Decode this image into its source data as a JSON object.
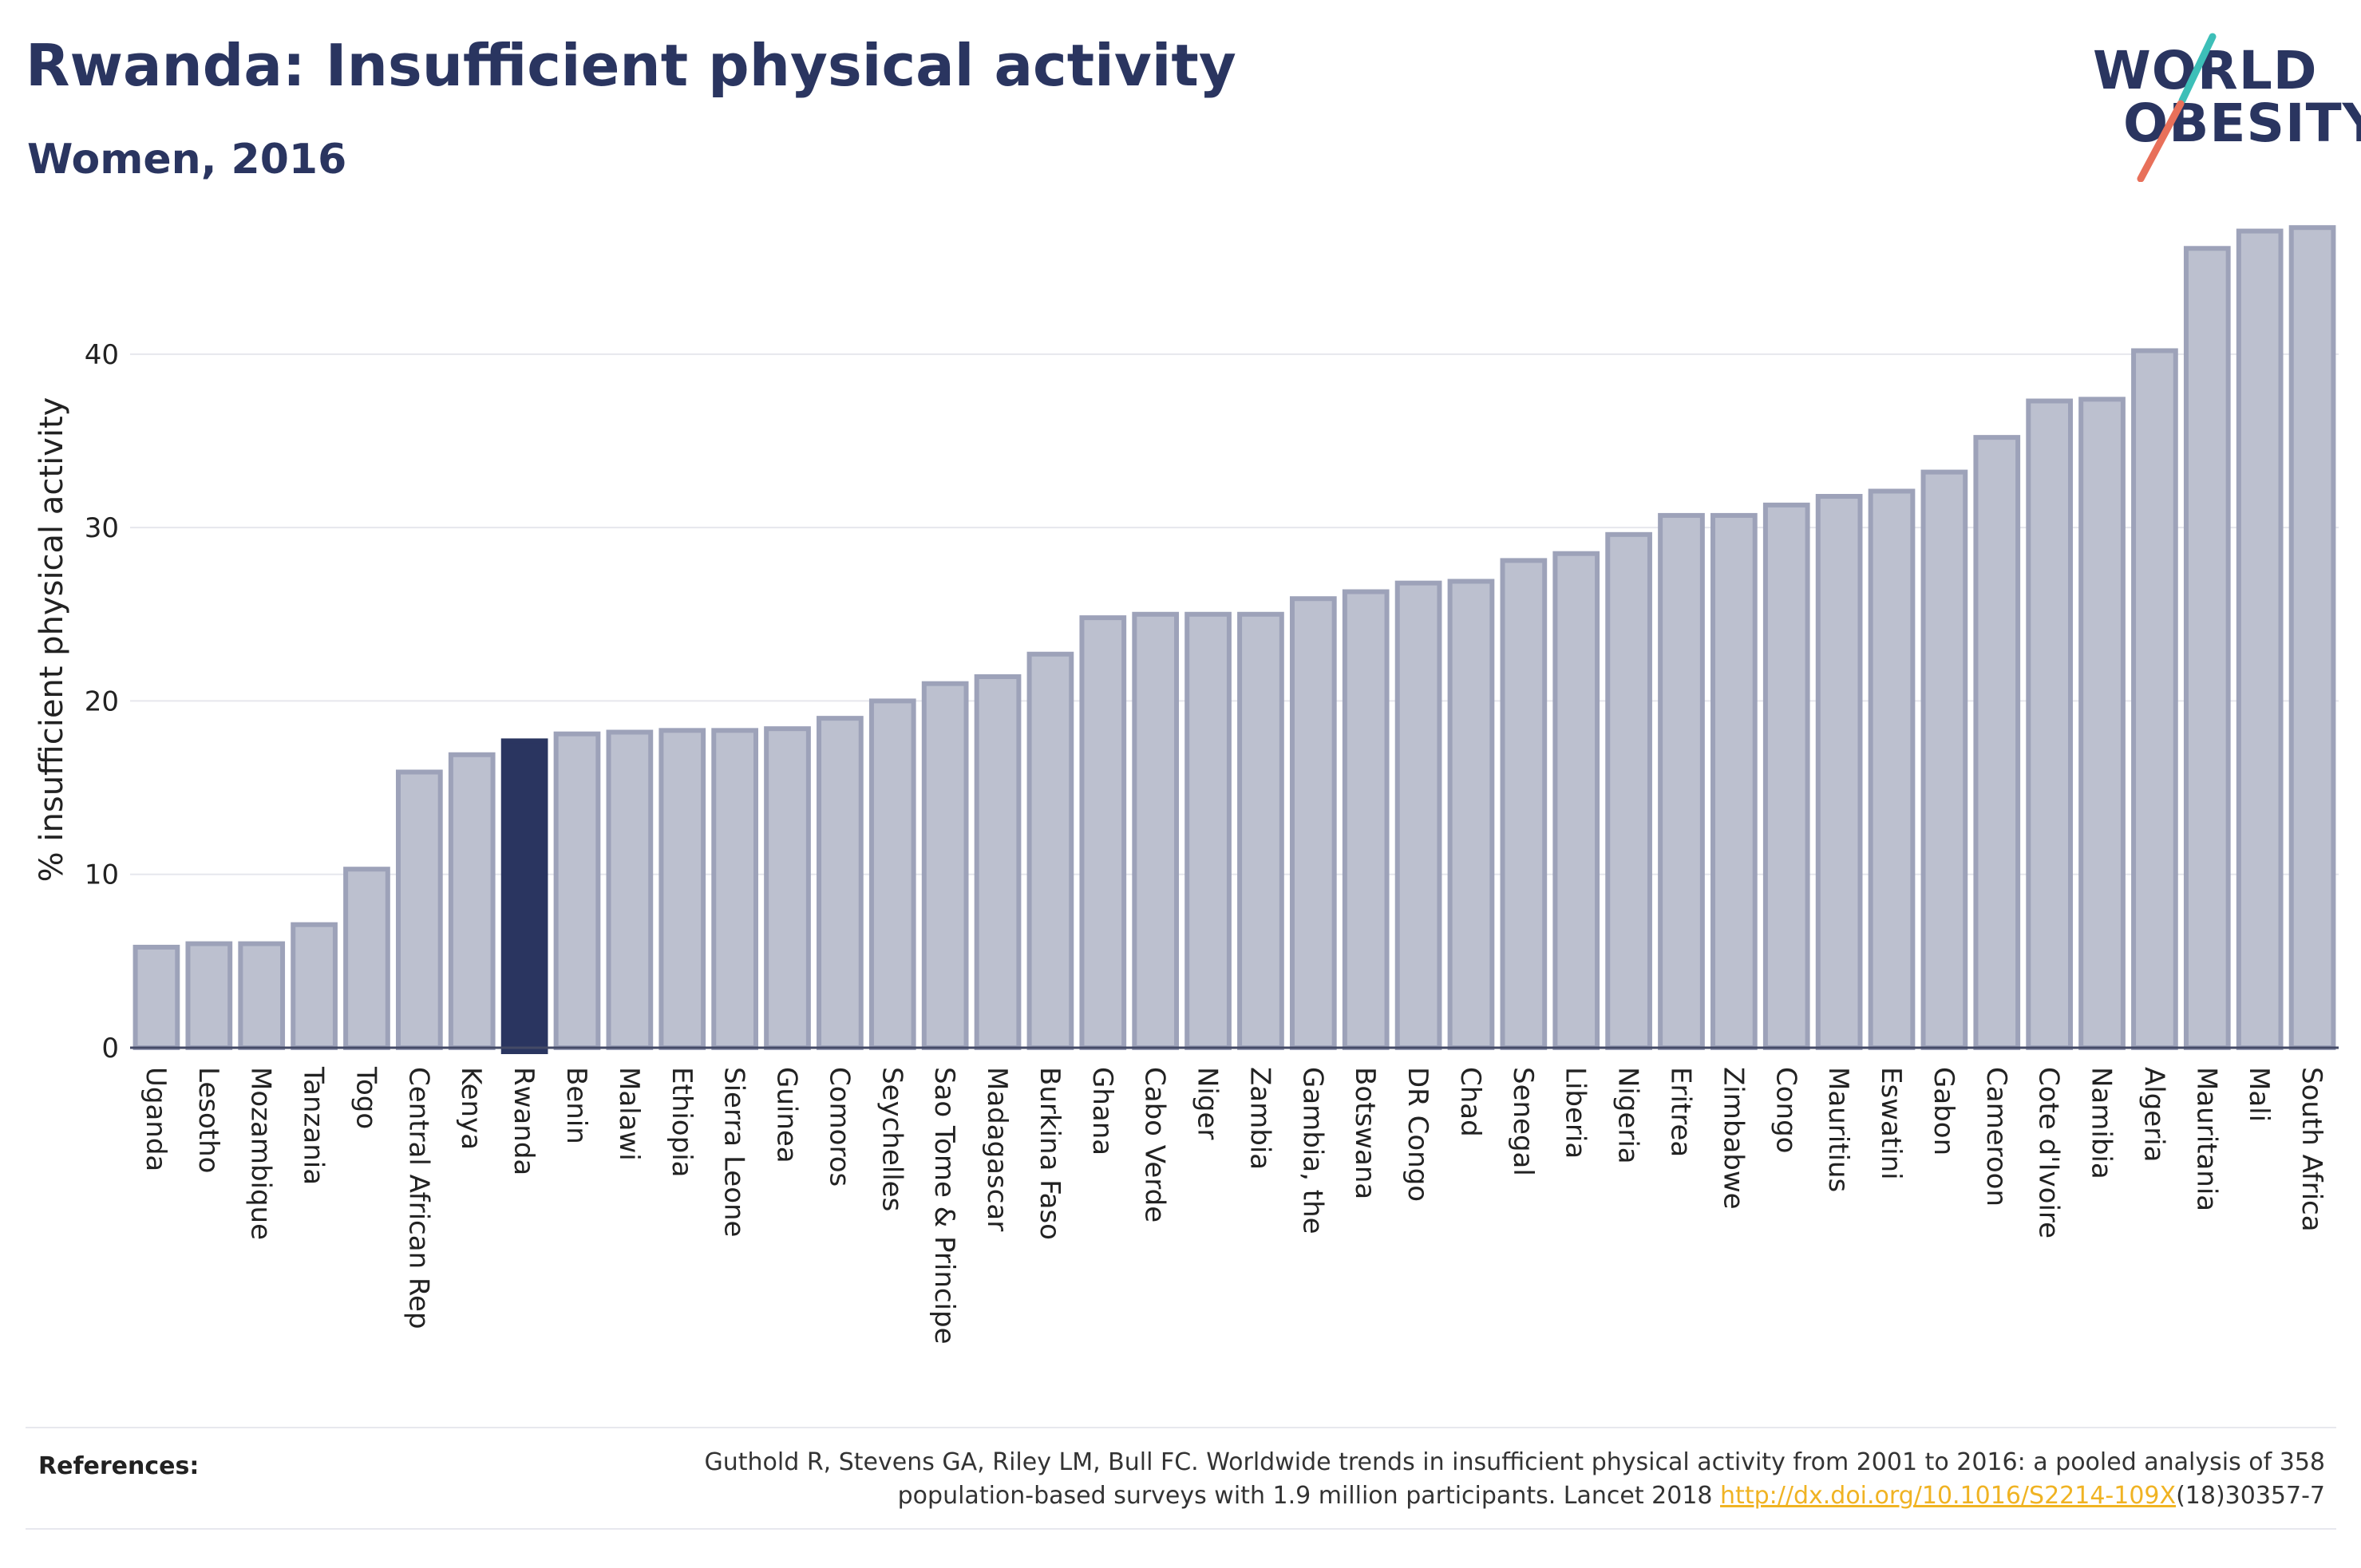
{
  "header": {
    "title": "Rwanda: Insufficient physical activity",
    "subtitle": "Women, 2016"
  },
  "logo": {
    "line1": "WORLD",
    "line2": "OBESITY",
    "colors": {
      "text": "#2a3560",
      "slash_top": "#3dbfb8",
      "slash_bottom": "#e8705a"
    }
  },
  "colors": {
    "bar_fill": "#bcc0cf",
    "bar_stroke": "#9da2b9",
    "highlight": "#2a3560",
    "grid": "#e6e7ed",
    "axis_text": "#222222"
  },
  "chart_data": {
    "type": "bar",
    "ylabel": "% insufficient physical activity",
    "xlabel": "",
    "ylim": [
      0,
      48
    ],
    "yticks": [
      0,
      10,
      20,
      30,
      40
    ],
    "grid": true,
    "highlight": "Rwanda",
    "categories": [
      "Uganda",
      "Lesotho",
      "Mozambique",
      "Tanzania",
      "Togo",
      "Central African Rep",
      "Kenya",
      "Rwanda",
      "Benin",
      "Malawi",
      "Ethiopia",
      "Sierra Leone",
      "Guinea",
      "Comoros",
      "Seychelles",
      "Sao Tome & Principe",
      "Madagascar",
      "Burkina Faso",
      "Ghana",
      "Cabo Verde",
      "Niger",
      "Zambia",
      "Gambia, the",
      "Botswana",
      "DR Congo",
      "Chad",
      "Senegal",
      "Liberia",
      "Nigeria",
      "Eritrea",
      "Zimbabwe",
      "Congo",
      "Mauritius",
      "Eswatini",
      "Gabon",
      "Cameroon",
      "Cote d'Ivoire",
      "Namibia",
      "Algeria",
      "Mauritania",
      "Mali",
      "South Africa"
    ],
    "values": [
      5.8,
      6.0,
      6.0,
      7.1,
      10.3,
      15.9,
      16.9,
      17.7,
      18.1,
      18.2,
      18.3,
      18.3,
      18.4,
      19.0,
      20.0,
      21.0,
      21.4,
      22.7,
      24.8,
      25.0,
      25.0,
      25.0,
      25.9,
      26.3,
      26.8,
      26.9,
      28.1,
      28.5,
      29.6,
      30.7,
      30.7,
      31.3,
      31.8,
      32.1,
      33.2,
      35.2,
      37.3,
      37.4,
      40.2,
      46.1,
      47.1,
      47.3
    ]
  },
  "references": {
    "label": "References:",
    "text_line1": "Guthold R, Stevens GA, Riley LM, Bull FC. Worldwide trends in insufficient physical activity from 2001 to 2016: a pooled analysis of 358",
    "text_line2_prefix": "population-based surveys with 1.9 million participants. Lancet 2018 ",
    "link_text": "http://dx.doi.org/10.1016/S2214-109X",
    "text_line2_suffix": "(18)30357-7"
  }
}
